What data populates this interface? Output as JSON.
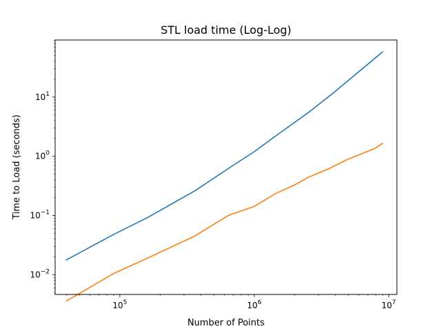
{
  "chart_data": {
    "type": "line",
    "title": "STL load time (Log-Log)",
    "xlabel": "Number of Points",
    "ylabel": "Time to Load (seconds)",
    "xscale": "log",
    "yscale": "log",
    "xlim": [
      33000,
      11500000
    ],
    "ylim": [
      0.00465,
      92
    ],
    "grid": false,
    "legend": "none",
    "x_ticks": [
      {
        "value": 100000,
        "base": "10",
        "exp": "5"
      },
      {
        "value": 1000000,
        "base": "10",
        "exp": "6"
      },
      {
        "value": 10000000,
        "base": "10",
        "exp": "7"
      }
    ],
    "y_ticks": [
      {
        "value": 0.01,
        "base": "10",
        "exp": "−2"
      },
      {
        "value": 0.1,
        "base": "10",
        "exp": "−1"
      },
      {
        "value": 1,
        "base": "10",
        "exp": "0"
      },
      {
        "value": 10,
        "base": "10",
        "exp": "1"
      }
    ],
    "series": [
      {
        "color": "#1f77b4",
        "x": [
          40000,
          90000,
          160000,
          360000,
          640000,
          1000000,
          1440000,
          2560000,
          4000000,
          9000000
        ],
        "y": [
          0.0178,
          0.048,
          0.092,
          0.26,
          0.62,
          1.2,
          2.2,
          5.6,
          12.5,
          58
        ]
      },
      {
        "color": "#ff7f0e",
        "x": [
          40000,
          90000,
          160000,
          360000,
          640000,
          1000000,
          1440000,
          2000000,
          2560000,
          3600000,
          4840000,
          7840000,
          9000000
        ],
        "y": [
          0.0036,
          0.0105,
          0.019,
          0.045,
          0.1,
          0.143,
          0.235,
          0.33,
          0.45,
          0.62,
          0.87,
          1.35,
          1.65
        ]
      }
    ]
  }
}
